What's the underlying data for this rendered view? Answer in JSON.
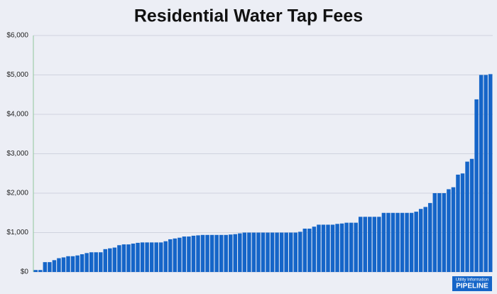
{
  "chart_data": {
    "type": "bar",
    "title": "Residential Water Tap Fees",
    "categories": [
      null,
      null,
      null,
      null,
      null,
      null,
      null,
      null,
      null,
      null,
      null,
      null,
      null,
      null,
      null,
      null,
      null,
      null,
      null,
      null,
      null,
      null,
      null,
      null,
      null,
      null,
      null,
      null,
      null,
      null,
      null,
      null,
      null,
      null,
      null,
      null,
      null,
      null,
      null,
      null,
      null,
      null,
      null,
      null,
      null,
      null,
      null,
      null,
      null,
      null,
      null,
      null,
      null,
      null,
      null,
      null,
      null,
      null,
      null,
      null,
      null,
      null,
      null,
      null,
      null,
      null,
      null,
      null,
      null,
      null,
      null,
      null,
      null,
      null,
      null,
      null,
      null,
      null,
      null,
      null,
      null,
      null,
      null,
      null,
      null,
      null,
      null,
      null,
      null,
      null,
      null,
      null,
      null,
      null,
      null,
      null,
      null,
      null,
      null
    ],
    "values": [
      50,
      50,
      250,
      250,
      300,
      350,
      370,
      400,
      400,
      420,
      450,
      480,
      500,
      500,
      500,
      580,
      600,
      620,
      680,
      700,
      700,
      720,
      740,
      750,
      750,
      750,
      750,
      750,
      780,
      830,
      850,
      870,
      900,
      900,
      920,
      930,
      940,
      940,
      940,
      940,
      940,
      940,
      950,
      960,
      980,
      1000,
      1000,
      1000,
      1000,
      1000,
      1000,
      1000,
      1000,
      1000,
      1000,
      1000,
      1000,
      1020,
      1100,
      1100,
      1150,
      1200,
      1200,
      1200,
      1200,
      1220,
      1230,
      1250,
      1250,
      1250,
      1400,
      1400,
      1400,
      1400,
      1400,
      1500,
      1500,
      1500,
      1500,
      1500,
      1500,
      1500,
      1530,
      1600,
      1650,
      1750,
      2000,
      2000,
      2000,
      2100,
      2150,
      2470,
      2500,
      2800,
      2870,
      4380,
      5000,
      5000,
      5020
    ],
    "color": "#1565c8",
    "ylim": [
      0,
      6000
    ],
    "yticks": [
      {
        "value": 0,
        "label": "$0"
      },
      {
        "value": 1000,
        "label": "$1,000"
      },
      {
        "value": 2000,
        "label": "$2,000"
      },
      {
        "value": 3000,
        "label": "$3,000"
      },
      {
        "value": 4000,
        "label": "$4,000"
      },
      {
        "value": 5000,
        "label": "$5,000"
      },
      {
        "value": 6000,
        "label": "$6,000"
      }
    ],
    "grid": true,
    "logo": {
      "line1": "Utility Information",
      "line2": "PIPELINE"
    }
  }
}
